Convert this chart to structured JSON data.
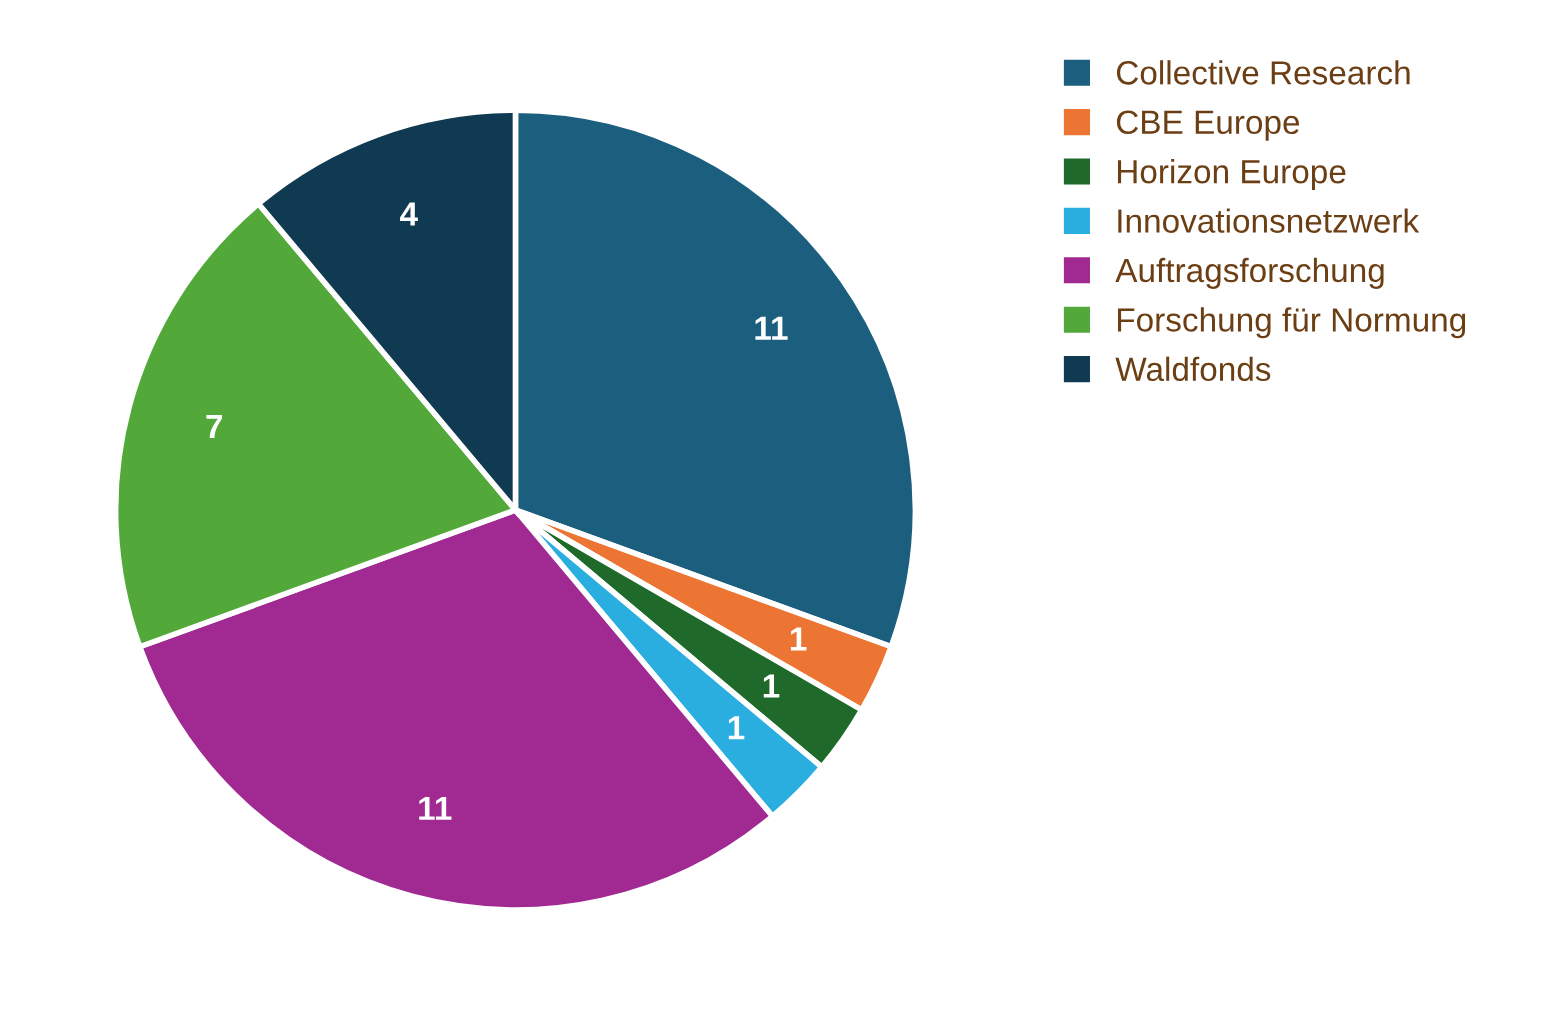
{
  "chart_data": {
    "type": "pie",
    "categories": [
      "Collective Research",
      "CBE Europe",
      "Horizon Europe",
      "Innovationsnetzwerk",
      "Auftragsforschung",
      "Forschung für Normung",
      "Waldfonds"
    ],
    "values": [
      11,
      1,
      1,
      1,
      11,
      7,
      4
    ],
    "colors": [
      "#1b5e7e",
      "#ec7533",
      "#1f6a2b",
      "#2aaee0",
      "#a02a92",
      "#52a93a",
      "#0f3a51"
    ],
    "data_labels": true,
    "legend": "right"
  }
}
